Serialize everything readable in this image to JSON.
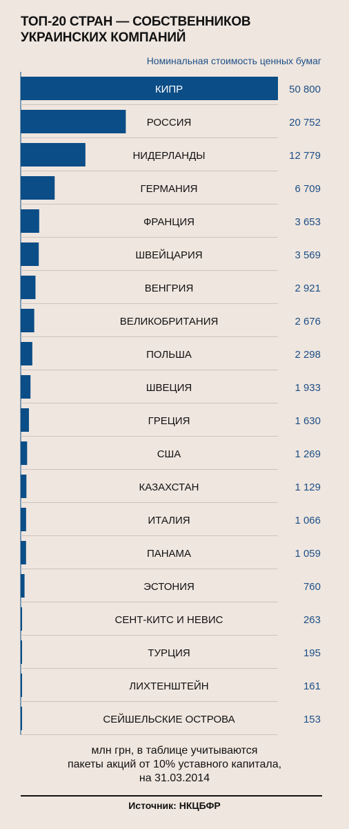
{
  "header": {
    "title_line1": "ТОП-20 СТРАН — СОБСТВЕННИКОВ",
    "title_line2": "УКРАИНСКИХ КОМПАНИЙ",
    "value_caption": "Номинальная стоимость ценных бумаг"
  },
  "chart_data": {
    "type": "bar",
    "orientation": "horizontal",
    "categories": [
      "КИПР",
      "РОССИЯ",
      "НИДЕРЛАНДЫ",
      "ГЕРМАНИЯ",
      "ФРАНЦИЯ",
      "ШВЕЙЦАРИЯ",
      "ВЕНГРИЯ",
      "ВЕЛИКОБРИТАНИЯ",
      "ПОЛЬША",
      "ШВЕЦИЯ",
      "ГРЕЦИЯ",
      "США",
      "КАЗАХСТАН",
      "ИТАЛИЯ",
      "ПАНАМА",
      "ЭСТОНИЯ",
      "СЕНТ-КИТС И НЕВИС",
      "ТУРЦИЯ",
      "ЛИХТЕНШТЕЙН",
      "СЕЙШЕЛЬСКИЕ ОСТРОВА"
    ],
    "values": [
      50800,
      20752,
      12779,
      6709,
      3653,
      3569,
      2921,
      2676,
      2298,
      1933,
      1630,
      1269,
      1129,
      1066,
      1059,
      760,
      263,
      195,
      161,
      153
    ],
    "value_labels": [
      "50 800",
      "20 752",
      "12 779",
      "6 709",
      "3 653",
      "3 569",
      "2 921",
      "2 676",
      "2 298",
      "1 933",
      "1 630",
      "1 269",
      "1 129",
      "1 066",
      "1 059",
      "760",
      "263",
      "195",
      "161",
      "153"
    ],
    "bar_color": "#0b4d86",
    "value_color": "#1d4f86",
    "grid": "row separators",
    "xlim": [
      0,
      50800
    ]
  },
  "footer": {
    "note_line1": "млн грн, в таблице учитываются",
    "note_line2": "пакеты акций от 10%  уставного капитала,",
    "note_line3": "на 31.03.2014",
    "source": "Источник: НКЦБФР"
  }
}
